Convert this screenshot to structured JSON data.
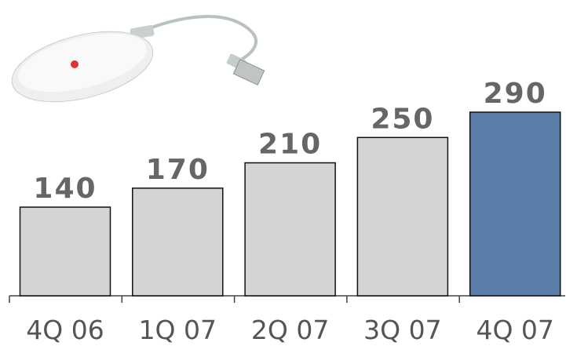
{
  "chart_data": {
    "type": "bar",
    "categories": [
      "4Q 06",
      "1Q 07",
      "2Q 07",
      "3Q 07",
      "4Q 07"
    ],
    "values": [
      140,
      170,
      210,
      250,
      290
    ],
    "colors": [
      "#d4d4d4",
      "#d4d4d4",
      "#d4d4d4",
      "#d4d4d4",
      "#5b7ea9"
    ]
  }
}
